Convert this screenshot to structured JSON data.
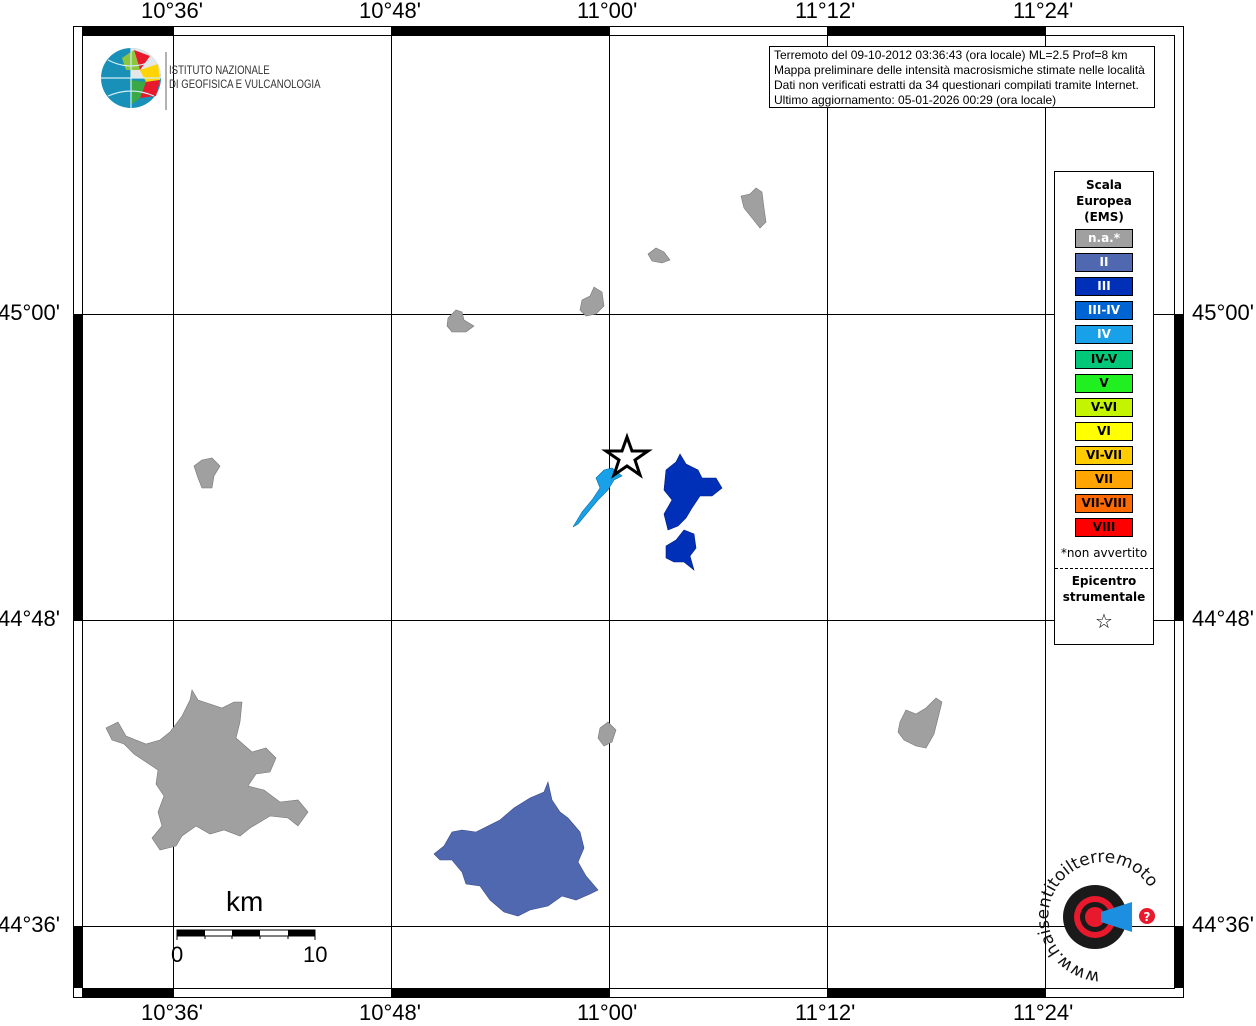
{
  "map": {
    "lon_ticks": [
      "10°36'",
      "10°48'",
      "11°00'",
      "11°12'",
      "11°24'"
    ],
    "lat_ticks": [
      "45°00'",
      "44°48'",
      "44°36'"
    ],
    "info_box": [
      "Terremoto del 09-10-2012 03:36:43 (ora locale) ML=2.5 Prof=8 km",
      "Mappa preliminare delle intensità macrosismiche stimate nelle località",
      "Dati non verificati estratti da 34 questionari compilati tramite Internet.",
      "Ultimo aggiornamento: 05-01-2026 00:29 (ora locale)"
    ],
    "scale_bar": {
      "unit": "km",
      "start": "0",
      "end": "10"
    },
    "areas": [
      {
        "intensity": "n.a.*",
        "count": 8
      },
      {
        "intensity": "II",
        "count": 1
      },
      {
        "intensity": "III",
        "count": 2
      },
      {
        "intensity": "IV",
        "count": 1
      }
    ],
    "epicenter_icon": "star-icon"
  },
  "logos": {
    "ingv_line1": "ISTITUTO NAZIONALE",
    "ingv_line2": "DI GEOFISICA E VULCANOLOGIA",
    "hsit": "www.haisentitoilterremoto.it"
  },
  "legend": {
    "title": [
      "Scala",
      "Europea",
      "(EMS)"
    ],
    "items": [
      {
        "label": "n.a.*",
        "color": "#a0a0a0",
        "text_color": "#ffffff"
      },
      {
        "label": "II",
        "color": "#5068b0",
        "text_color": "#ffffff"
      },
      {
        "label": "III",
        "color": "#0030b8",
        "text_color": "#ffffff"
      },
      {
        "label": "III-IV",
        "color": "#0064d2",
        "text_color": "#ffffff"
      },
      {
        "label": "IV",
        "color": "#18a0e8",
        "text_color": "#ffffff"
      },
      {
        "label": "IV-V",
        "color": "#00c878",
        "text_color": "#000000"
      },
      {
        "label": "V",
        "color": "#20f020",
        "text_color": "#000000"
      },
      {
        "label": "V-VI",
        "color": "#c4f400",
        "text_color": "#000000"
      },
      {
        "label": "VI",
        "color": "#ffff00",
        "text_color": "#000000"
      },
      {
        "label": "VI-VII",
        "color": "#ffcc00",
        "text_color": "#000000"
      },
      {
        "label": "VII",
        "color": "#ffa400",
        "text_color": "#000000"
      },
      {
        "label": "VII-VIII",
        "color": "#ff6a00",
        "text_color": "#000000"
      },
      {
        "label": "VIII",
        "color": "#ff0000",
        "text_color": "#000000"
      }
    ],
    "note": "*non avvertito",
    "epicenter_label": [
      "Epicentro",
      "strumentale"
    ],
    "epicenter_symbol": "☆"
  }
}
